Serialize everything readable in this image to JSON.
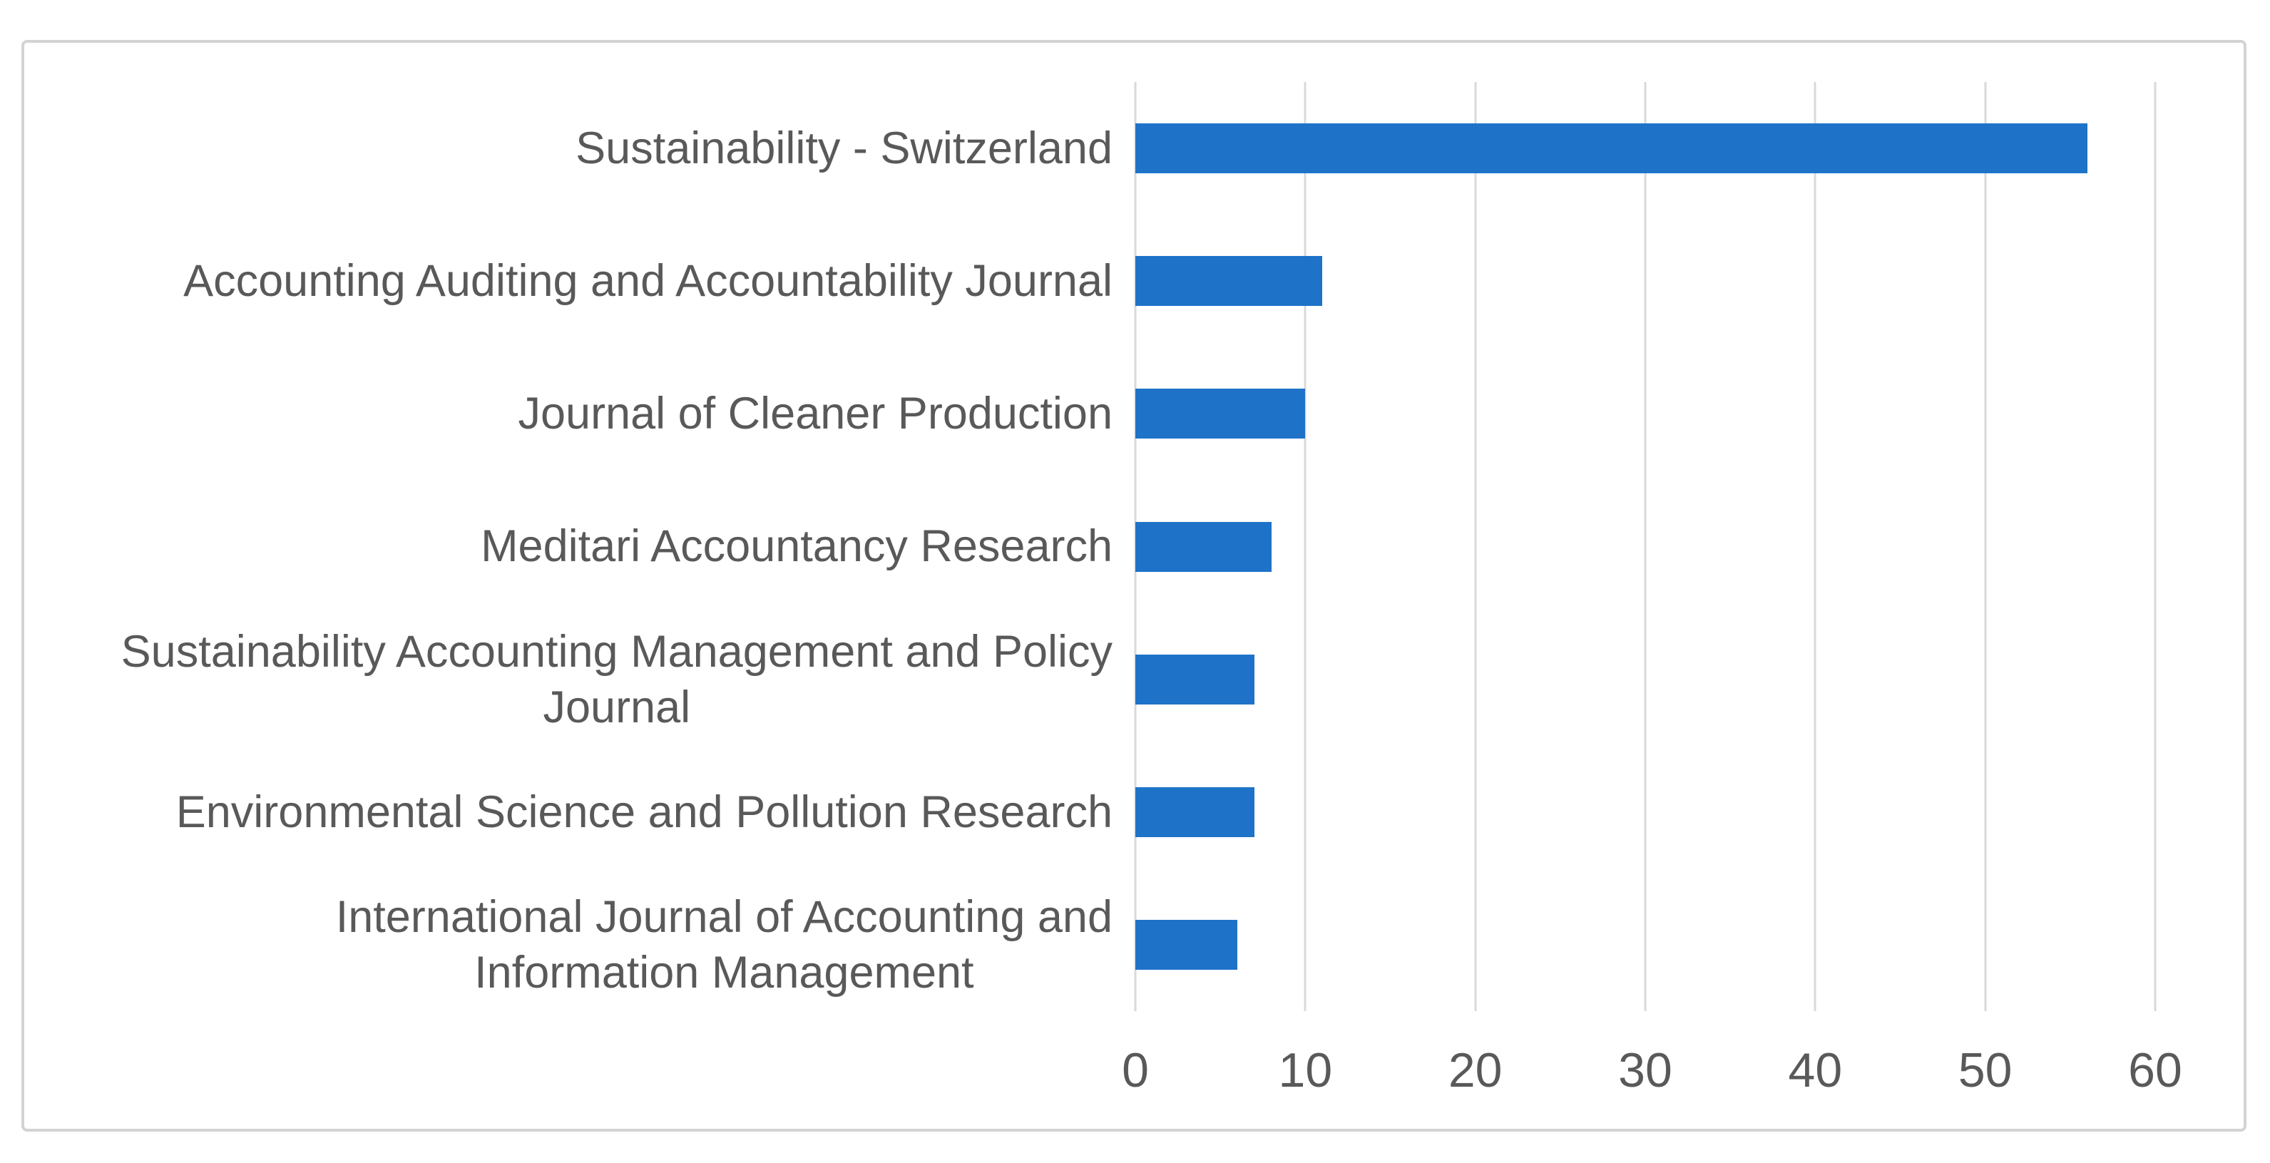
{
  "figure": {
    "background": "#ffffff",
    "border_color": "#d3d3d3"
  },
  "chart_data": {
    "type": "bar",
    "orientation": "horizontal",
    "title": "",
    "xlabel": "",
    "ylabel": "",
    "categories": [
      "Sustainability - Switzerland",
      "Accounting Auditing and Accountability Journal",
      "Journal of Cleaner Production",
      "Meditari Accountancy Research",
      "Sustainability Accounting Management and Policy\nJournal",
      "Environmental Science and Pollution Research",
      "International Journal of Accounting and\nInformation Management"
    ],
    "values": [
      56,
      11,
      10,
      8,
      7,
      7,
      6
    ],
    "xlim": [
      0,
      60
    ],
    "xticks": [
      0,
      10,
      20,
      30,
      40,
      50,
      60
    ],
    "grid": true,
    "legend_position": "none",
    "bar_color": "#1e73c8",
    "gridline_color": "#d9d9d9",
    "category_label_color": "#595959",
    "tick_label_color": "#595959"
  }
}
